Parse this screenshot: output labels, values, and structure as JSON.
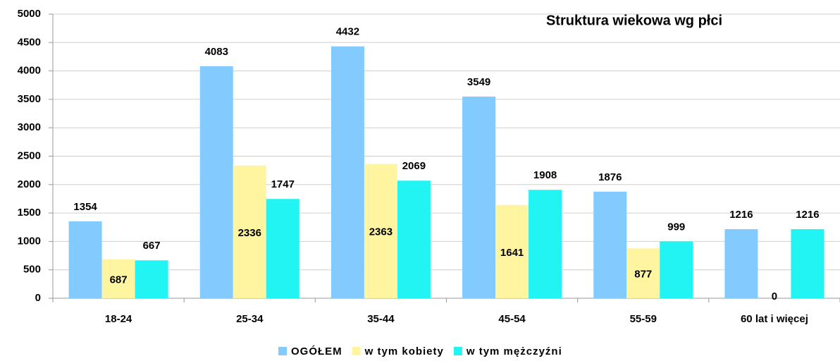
{
  "chart_data": {
    "type": "bar",
    "title": "Struktura wiekowa wg płci",
    "categories": [
      "18-24",
      "25-34",
      "35-44",
      "45-54",
      "55-59",
      "60 lat i więcej"
    ],
    "series": [
      {
        "name": "OGÓŁEM",
        "color": "#83caff",
        "values": [
          1354,
          4083,
          4432,
          3549,
          1876,
          1216
        ]
      },
      {
        "name": "w tym kobiety",
        "color": "#fff5a0",
        "values": [
          687,
          2336,
          2363,
          1641,
          877,
          0
        ]
      },
      {
        "name": "w tym mężczyźni",
        "color": "#22f3f3",
        "values": [
          667,
          1747,
          2069,
          1908,
          999,
          1216
        ]
      }
    ],
    "ylim": [
      0,
      5000
    ],
    "yticks": [
      0,
      500,
      1000,
      1500,
      2000,
      2500,
      3000,
      3500,
      4000,
      4500,
      5000
    ],
    "grid": true,
    "legend": "bottom"
  }
}
